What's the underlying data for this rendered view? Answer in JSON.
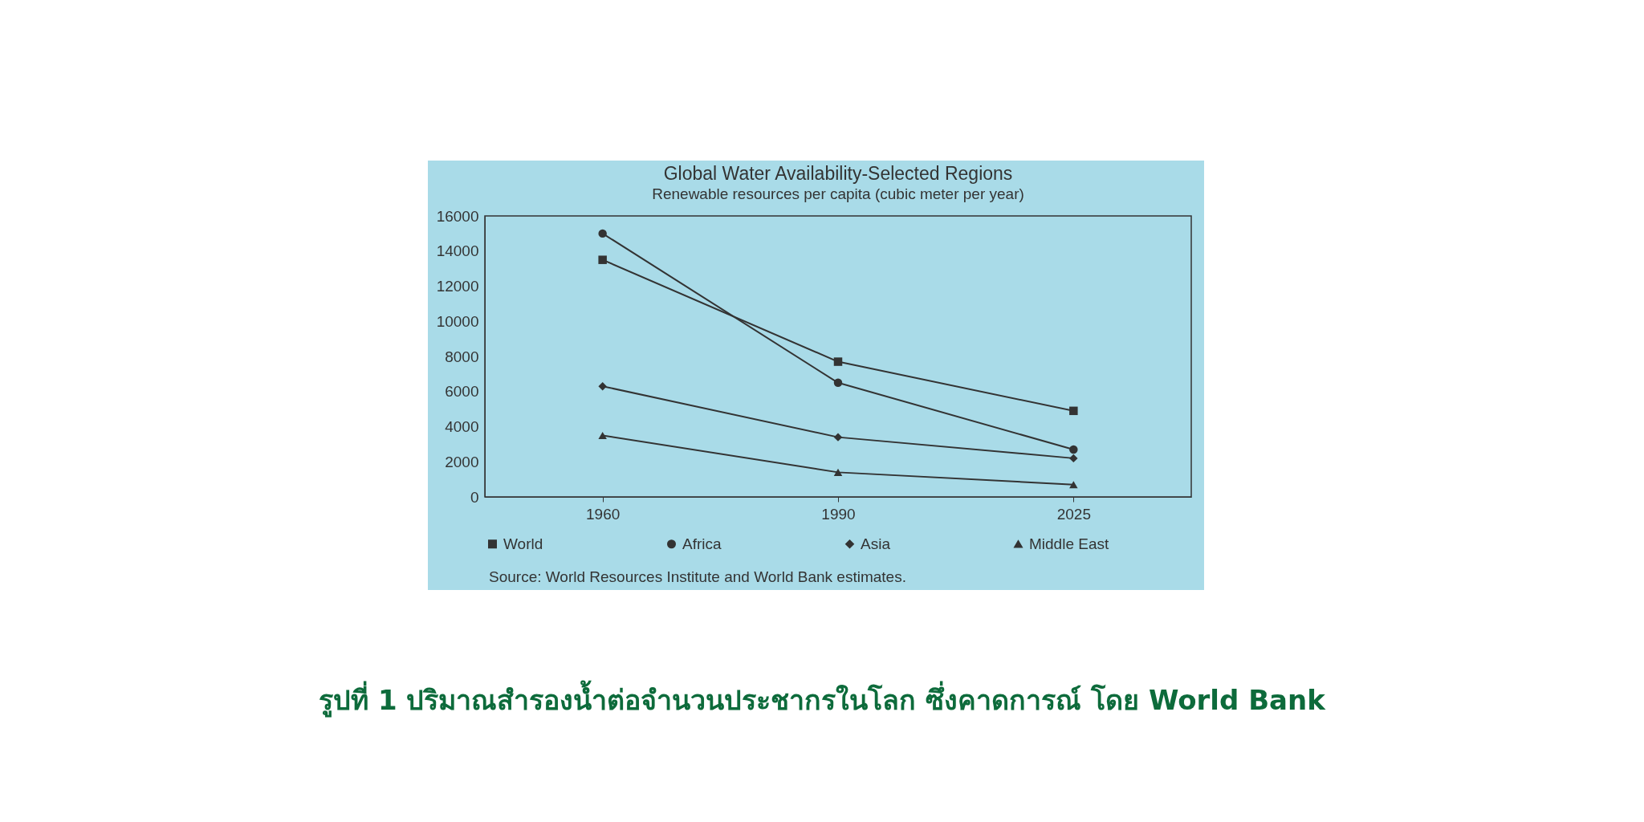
{
  "chart_data": {
    "type": "line",
    "title": "Global Water Availability-Selected Regions",
    "subtitle": "Renewable resources per capita (cubic meter per year)",
    "categories": [
      "1960",
      "1990",
      "2025"
    ],
    "series": [
      {
        "name": "World",
        "color": "#333333",
        "marker": "square",
        "values": [
          13500,
          7700,
          4900
        ]
      },
      {
        "name": "Africa",
        "color": "#333333",
        "marker": "circle",
        "values": [
          15000,
          6500,
          2700
        ]
      },
      {
        "name": "Asia",
        "color": "#333333",
        "marker": "diamond",
        "values": [
          6300,
          3400,
          2200
        ]
      },
      {
        "name": "Middle East",
        "color": "#333333",
        "marker": "triangle",
        "values": [
          3500,
          1400,
          700
        ]
      }
    ],
    "ylim": [
      0,
      16000
    ],
    "yticks": [
      0,
      2000,
      4000,
      6000,
      8000,
      10000,
      12000,
      14000,
      16000
    ],
    "grid": false,
    "legend": "bottom",
    "line_style": "solid",
    "annotations": [
      "Source: World Resources Institute and World Bank estimates.",
      "รูปที่ 1 ปริมาณสำรองน้ำต่อจำนวนประชากรในโลก ซึ่งคาดการณ์ โดย World Bank"
    ]
  }
}
